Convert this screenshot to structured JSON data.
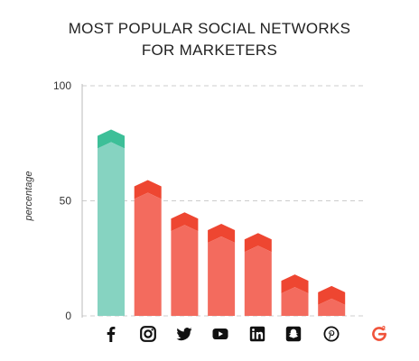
{
  "chart_data": {
    "type": "bar",
    "title_line1": "MOST POPULAR SOCIAL NETWORKS",
    "title_line2": "FOR MARKETERS",
    "ylabel": "percentage",
    "xlabel": "",
    "ylim": [
      0,
      100
    ],
    "yticks": [
      "0",
      "50",
      "100"
    ],
    "grid": "dashed-horizontal",
    "categories": [
      "Facebook",
      "Instagram",
      "Twitter",
      "YouTube",
      "LinkedIn",
      "Snapchat",
      "Pinterest"
    ],
    "category_icons": [
      "facebook-icon",
      "instagram-icon",
      "twitter-icon",
      "youtube-icon",
      "linkedin-icon",
      "snapchat-icon",
      "pinterest-icon"
    ],
    "values": [
      81,
      59,
      45,
      40,
      36,
      18,
      13
    ],
    "bar_colors": [
      "#86d3c1",
      "#f36b5e",
      "#f36b5e",
      "#f36b5e",
      "#f36b5e",
      "#f36b5e",
      "#f36b5e"
    ],
    "cap_colors": [
      "#3dbf98",
      "#ee4631",
      "#ee4631",
      "#ee4631",
      "#ee4631",
      "#ee4631",
      "#ee4631"
    ]
  },
  "brand": {
    "logo_icon": "g2-logo-icon",
    "color": "#f0533a"
  }
}
